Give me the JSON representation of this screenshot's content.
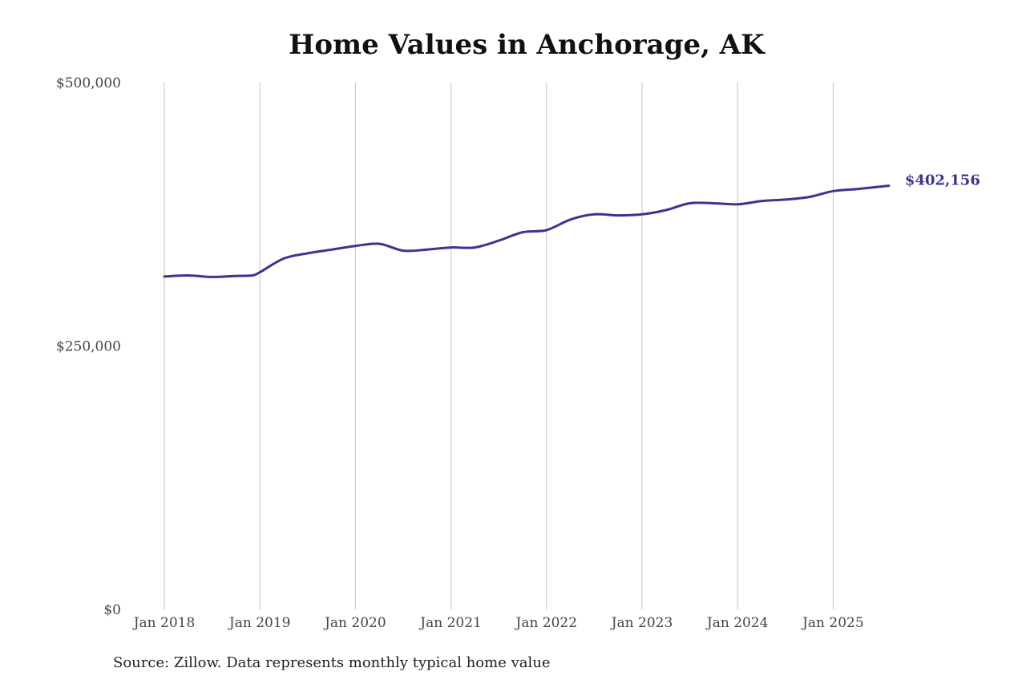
{
  "chart_data": {
    "type": "line",
    "title": "Home Values in Anchorage, AK",
    "source": "Source: Zillow. Data represents monthly typical home value",
    "xlabel": "",
    "ylabel": "",
    "ylim": [
      0,
      500000
    ],
    "y_ticks": [
      {
        "value": 0,
        "label": "$0"
      },
      {
        "value": 250000,
        "label": "$250,000"
      },
      {
        "value": 500000,
        "label": "$500,000"
      }
    ],
    "x_ticks": [
      "Jan 2018",
      "Jan 2019",
      "Jan 2020",
      "Jan 2021",
      "Jan 2022",
      "Jan 2023",
      "Jan 2024",
      "Jan 2025"
    ],
    "grid": "vertical",
    "line_color": "#3a3591",
    "end_label": "$402,156",
    "series": [
      {
        "points": [
          [
            "2018-01",
            316000
          ],
          [
            "2018-04",
            317000
          ],
          [
            "2018-07",
            315500
          ],
          [
            "2018-10",
            316500
          ],
          [
            "2018-12",
            317000
          ],
          [
            "2019-01",
            320000
          ],
          [
            "2019-04",
            333000
          ],
          [
            "2019-07",
            338000
          ],
          [
            "2019-10",
            341500
          ],
          [
            "2020-01",
            345000
          ],
          [
            "2020-04",
            347000
          ],
          [
            "2020-07",
            340500
          ],
          [
            "2020-10",
            341500
          ],
          [
            "2021-01",
            343500
          ],
          [
            "2021-04",
            343500
          ],
          [
            "2021-07",
            350000
          ],
          [
            "2021-10",
            358000
          ],
          [
            "2022-01",
            360000
          ],
          [
            "2022-04",
            370000
          ],
          [
            "2022-07",
            375000
          ],
          [
            "2022-10",
            374000
          ],
          [
            "2023-01",
            375000
          ],
          [
            "2023-04",
            379000
          ],
          [
            "2023-07",
            385500
          ],
          [
            "2023-10",
            385500
          ],
          [
            "2024-01",
            384500
          ],
          [
            "2024-04",
            387500
          ],
          [
            "2024-07",
            389000
          ],
          [
            "2024-10",
            391500
          ],
          [
            "2025-01",
            397000
          ],
          [
            "2025-04",
            399000
          ],
          [
            "2025-08",
            402156
          ]
        ]
      }
    ]
  }
}
